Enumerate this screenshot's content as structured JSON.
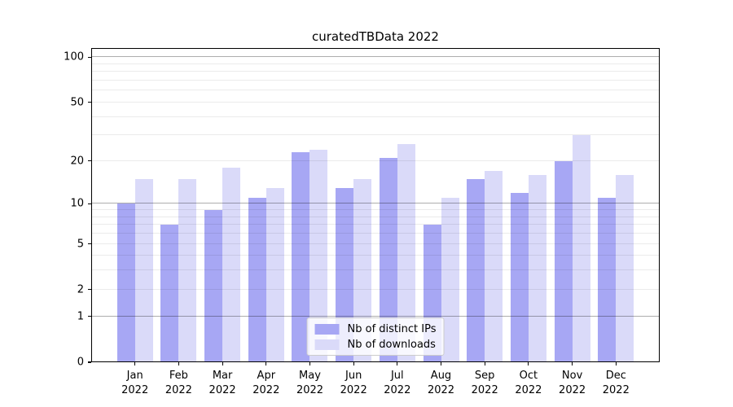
{
  "chart_data": {
    "type": "bar",
    "title": "curatedTBData 2022",
    "categories": [
      "Jan",
      "Feb",
      "Mar",
      "Apr",
      "May",
      "Jun",
      "Jul",
      "Aug",
      "Sep",
      "Oct",
      "Nov",
      "Dec"
    ],
    "year_label": "2022",
    "series": [
      {
        "name": "Nb of distinct IPs",
        "color": "#a7a7f4",
        "values": [
          10,
          7,
          9,
          11,
          23,
          13,
          21,
          7,
          15,
          12,
          20,
          11
        ]
      },
      {
        "name": "Nb of downloads",
        "color": "#dadaf9",
        "values": [
          15,
          15,
          18,
          13,
          24,
          15,
          26,
          11,
          17,
          16,
          30,
          16
        ]
      }
    ],
    "yscale": "log1p",
    "yticks": [
      0,
      1,
      2,
      5,
      10,
      20,
      50,
      100
    ],
    "grid_major_at": [
      1,
      10,
      100
    ],
    "grid_minor_at": [
      2,
      3,
      4,
      6,
      7,
      8,
      9,
      20,
      30,
      40,
      60,
      70,
      80,
      90,
      2.0
    ],
    "ylim": [
      0,
      115
    ],
    "xlabel": "",
    "ylabel": "",
    "grid": "both",
    "legend_position": "lower center"
  },
  "colors": {
    "background": "#ffffff",
    "spine": "#000000",
    "grid_major": "rgba(0,0,0,0.32)",
    "grid_minor": "rgba(0,0,0,0.08)",
    "text": "#000000",
    "legend_background": "rgba(255,255,255,0.8)",
    "legend_border": "#cccccc"
  }
}
